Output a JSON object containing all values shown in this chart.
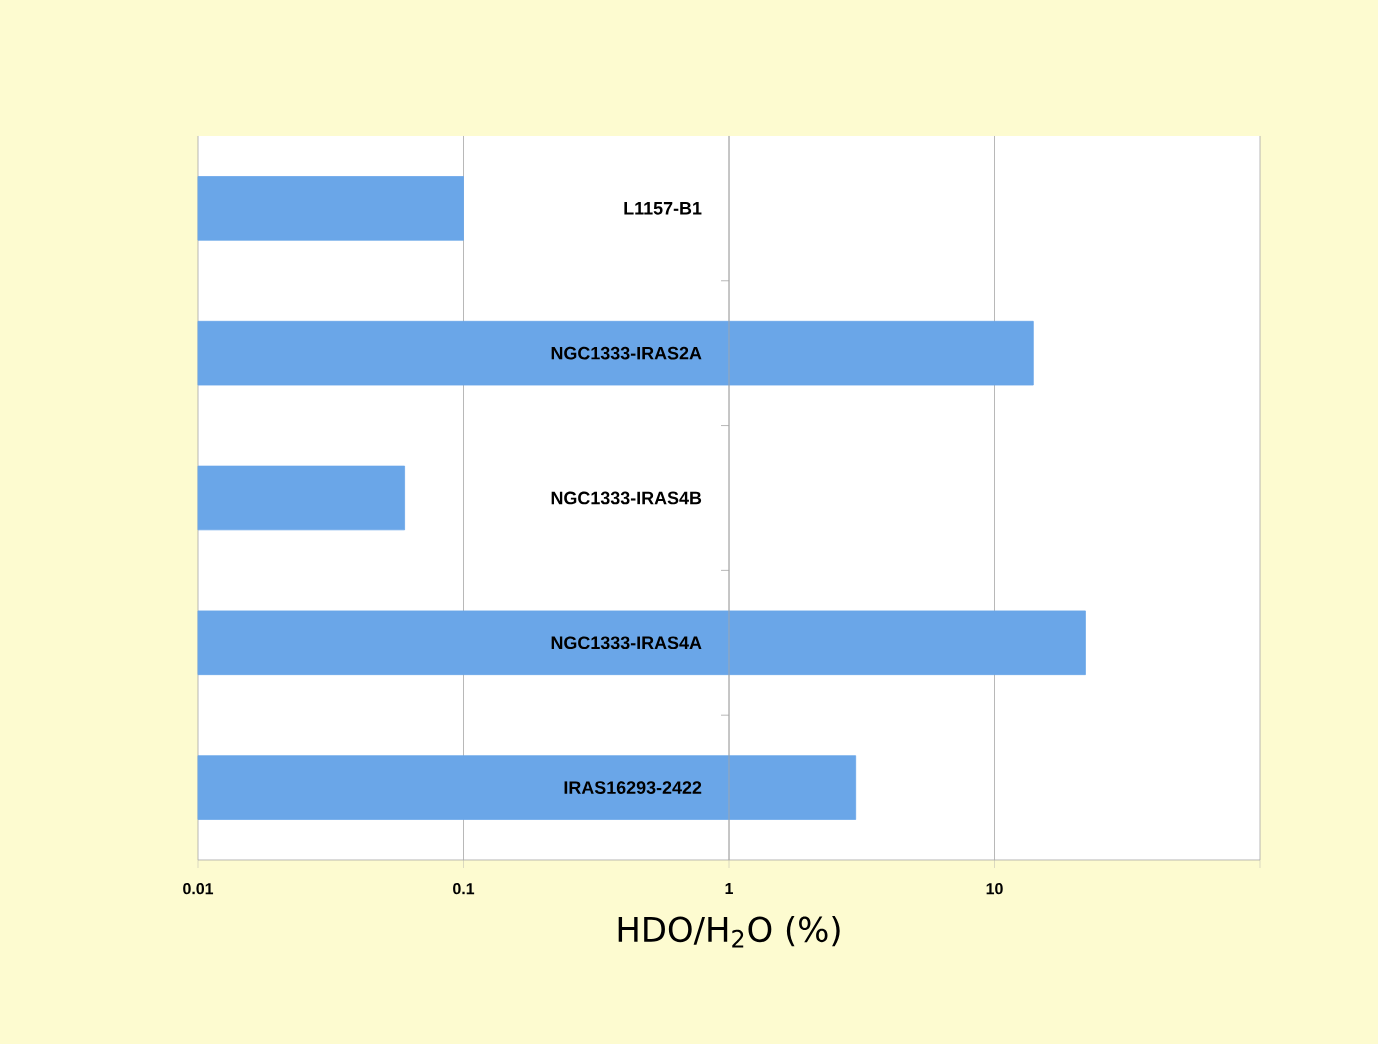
{
  "chart_data": {
    "type": "bar",
    "orientation": "horizontal",
    "xlabel": "HDO/H$_{2}$O (%)",
    "categories": [
      "L1157-B1",
      "NGC1333-IRAS2A",
      "NGC1333-IRAS4B",
      "NGC1333-IRAS4A",
      "IRAS16293-2422"
    ],
    "values": [
      0.1,
      14,
      0.06,
      22,
      3
    ],
    "color": "#6aa6e8",
    "log": "x",
    "xlim": [
      0.01,
      100
    ],
    "xticks": [
      0.01,
      0.1,
      1,
      10,
      {
        "value": 100,
        "label": null
      }
    ],
    "grid": "x"
  }
}
